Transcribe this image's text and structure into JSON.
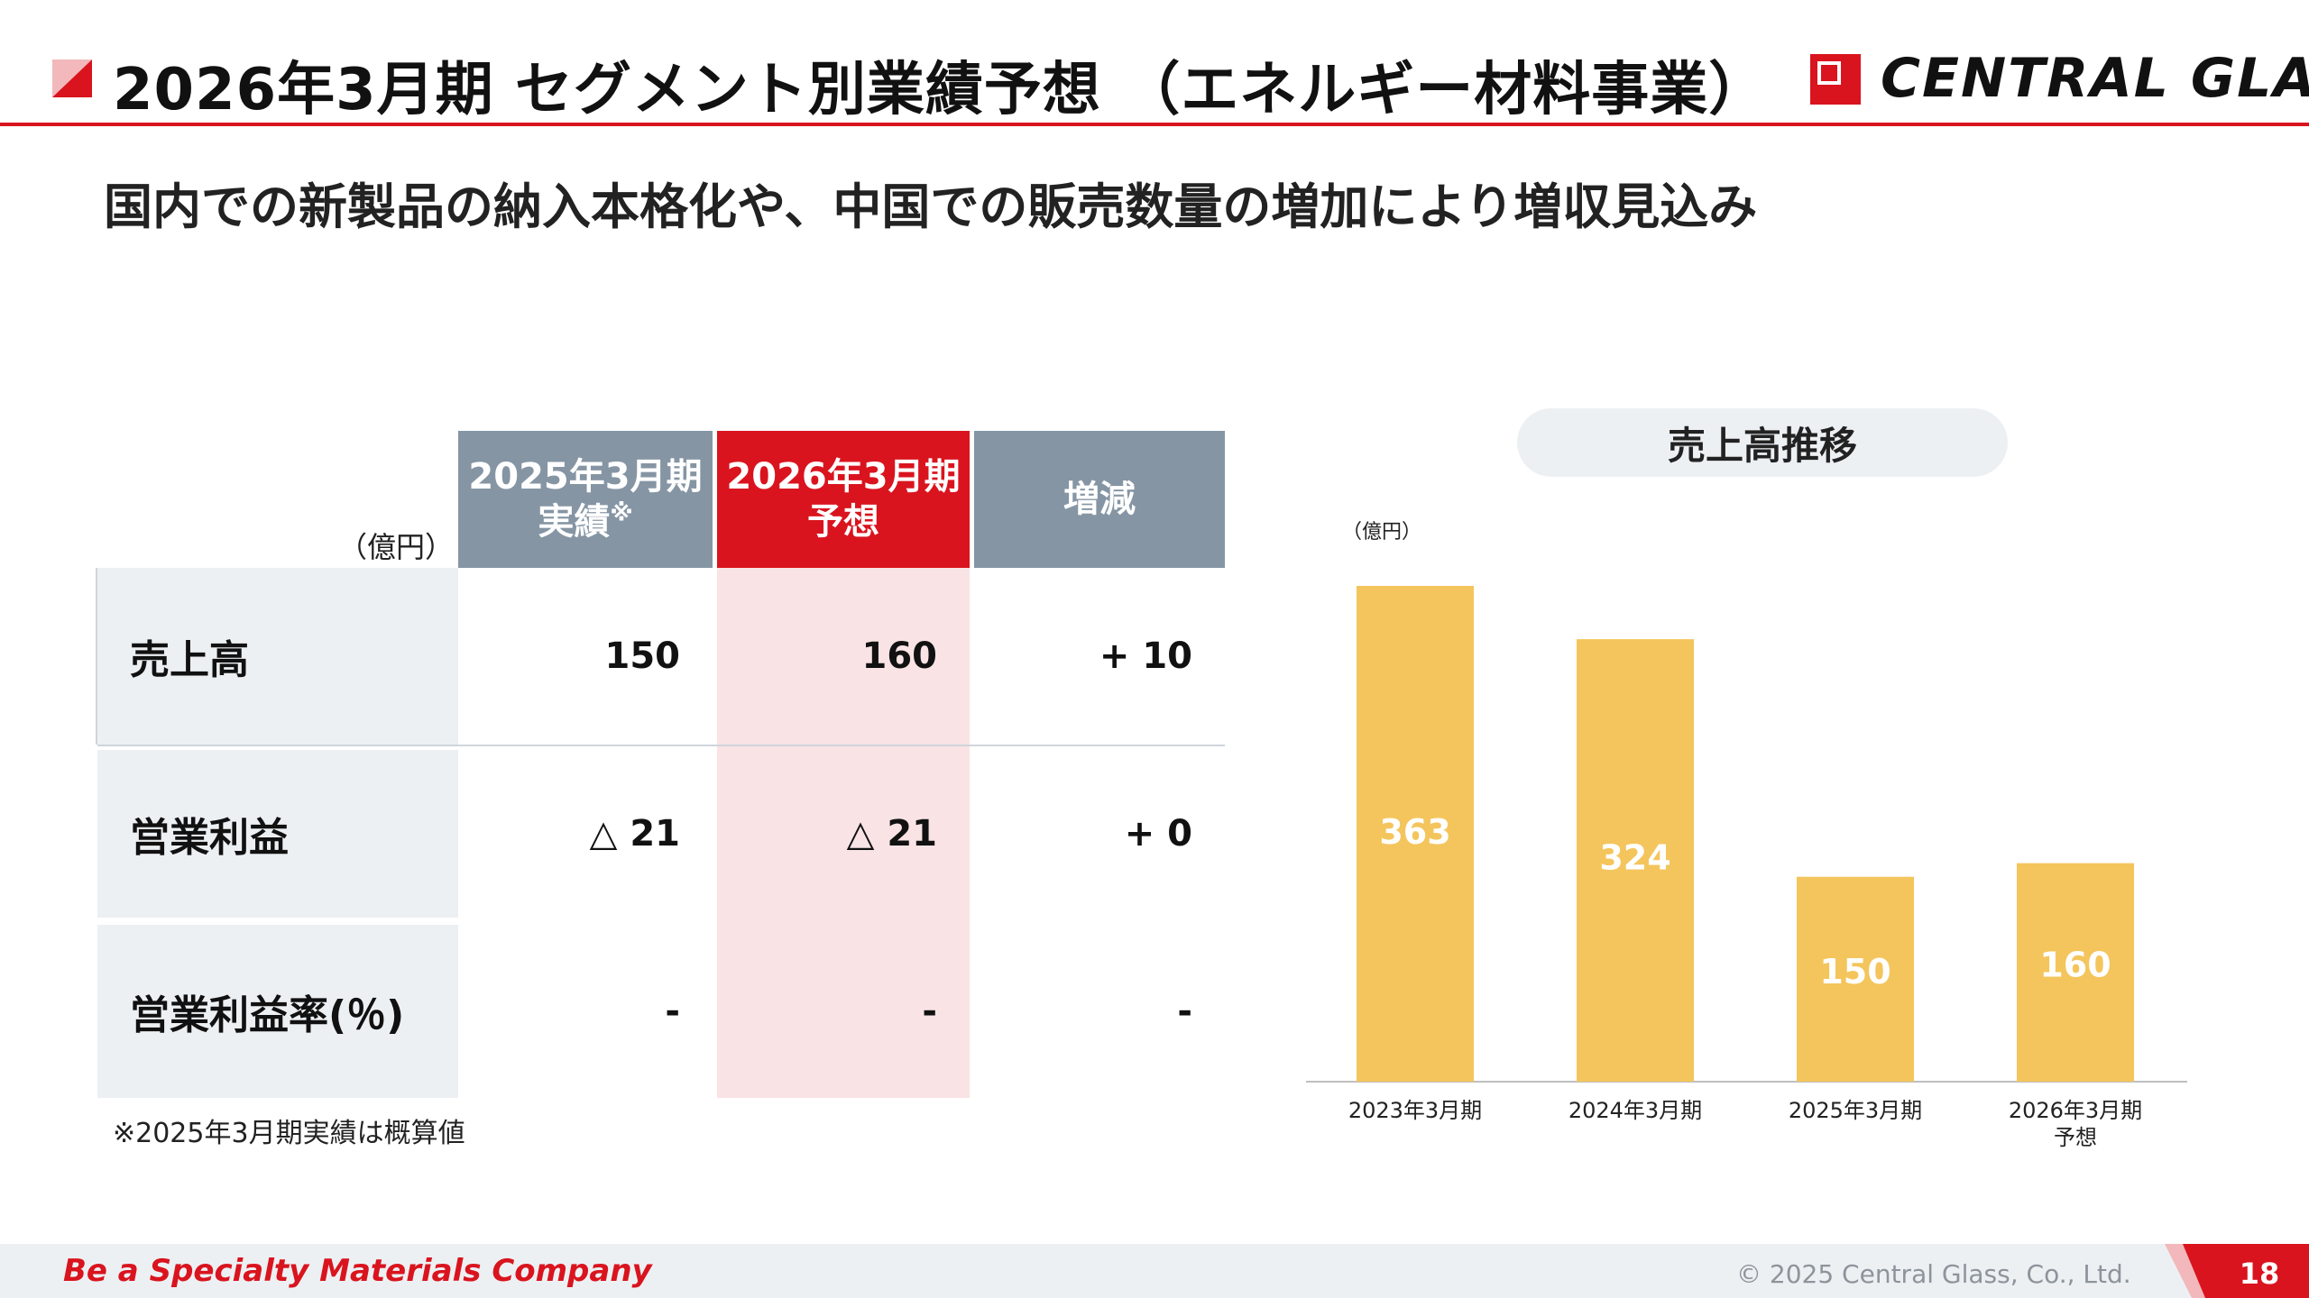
{
  "header": {
    "title": "2026年3月期 セグメント別業績予想 （エネルギー材料事業）",
    "logo_text": "CENTRAL GLASS",
    "accent_color": "#d9141e"
  },
  "subtitle": "国内での新製品の納入本格化や、中国での販売数量の増加により増収見込み",
  "table": {
    "unit": "（億円）",
    "col_prev_line1": "2025年3月期",
    "col_prev_line2": "実績",
    "col_prev_mark": "※",
    "col_fcst_line1": "2026年3月期",
    "col_fcst_line2": "予想",
    "col_diff": "増減",
    "rows": [
      {
        "label": "売上高",
        "prev": "150",
        "fcst": "160",
        "diff": "+ 10"
      },
      {
        "label": "営業利益",
        "prev": "△ 21",
        "fcst": "△ 21",
        "diff": "+ 0"
      },
      {
        "label": "営業利益率(％)",
        "prev": "-",
        "fcst": "-",
        "diff": "-"
      }
    ],
    "footnote": "※2025年3月期実績は概算値"
  },
  "chart_title": "売上高推移",
  "chart_data": {
    "type": "bar",
    "title": "売上高推移",
    "ylabel": "（億円）",
    "categories": [
      "2023年3月期",
      "2024年3月期",
      "2025年3月期",
      "2026年3月期\n予想"
    ],
    "values": [
      363,
      324,
      150,
      160
    ],
    "ylim": [
      0,
      363
    ],
    "bar_color": "#f4c55c",
    "label_color": "#ffffff"
  },
  "footer": {
    "slogan": "Be a Specialty Materials Company",
    "copyright": "© 2025 Central Glass, Co., Ltd.",
    "page_number": "18"
  }
}
